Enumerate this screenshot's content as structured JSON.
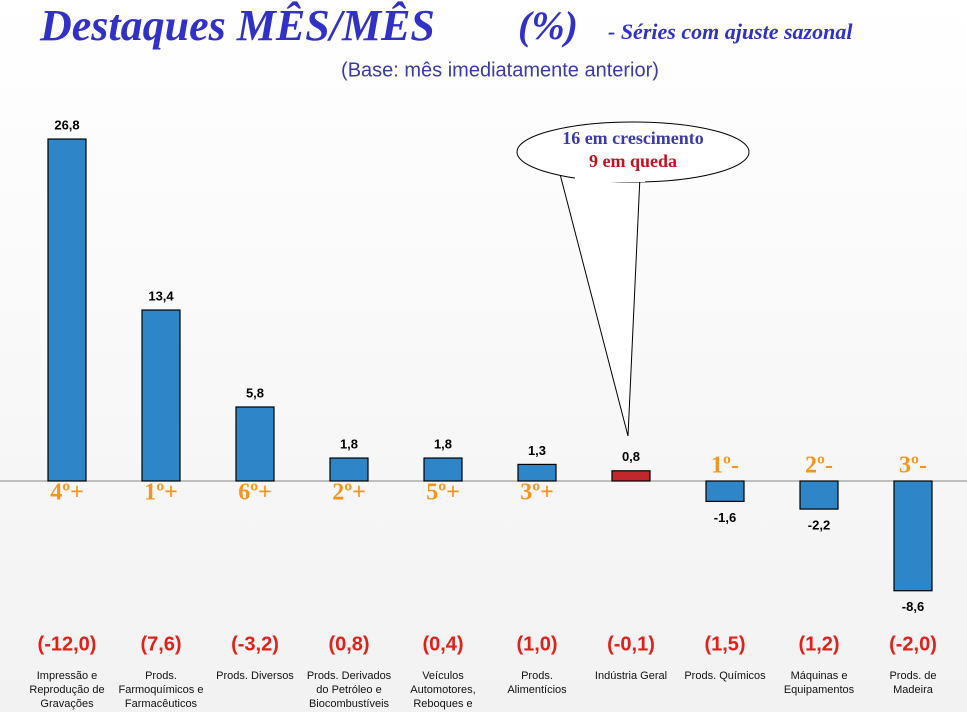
{
  "chart_data": {
    "type": "bar",
    "title": "Destaques MÊS/MÊS",
    "title_unit": "(%)",
    "title_note": "- Séries com ajuste sazonal",
    "subtitle": "(Base: mês imediatamente anterior)",
    "categories": [
      "Impressão e\nReprodução de\nGravações",
      "Prods.\nFarmoquímicos e\nFarmacêuticos",
      "Prods. Diversos",
      "Prods. Derivados\ndo Petróleo e\nBiocombustíveis",
      "Veículos\nAutomotores,\nReboques e",
      "Prods.\nAlimentícios",
      "Indústria Geral",
      "Prods. Químicos",
      "Máquinas e\nEquipamentos",
      "Prods. de\nMadeira"
    ],
    "values": [
      26.8,
      13.4,
      5.8,
      1.8,
      1.8,
      1.3,
      0.8,
      -1.6,
      -2.2,
      -8.6
    ],
    "value_labels": [
      "26,8",
      "13,4",
      "5,8",
      "1,8",
      "1,8",
      "1,3",
      "0,8",
      "-1,6",
      "-2,2",
      "-8,6"
    ],
    "colors": [
      "#2e86c9",
      "#2e86c9",
      "#2e86c9",
      "#2e86c9",
      "#2e86c9",
      "#2e86c9",
      "#c1272d",
      "#2e86c9",
      "#2e86c9",
      "#2e86c9"
    ],
    "ranks": [
      "4º+",
      "1º+",
      "6º+",
      "2º+",
      "5º+",
      "3º+",
      null,
      "1º-",
      "2º-",
      "3º-"
    ],
    "previous": [
      "(-12,0)",
      "(7,6)",
      "(-3,2)",
      "(0,8)",
      "(0,4)",
      "(1,0)",
      "(-0,1)",
      "(1,5)",
      "(1,2)",
      "(-2,0)"
    ],
    "callout": [
      "16 em crescimento",
      "9 em queda"
    ]
  }
}
